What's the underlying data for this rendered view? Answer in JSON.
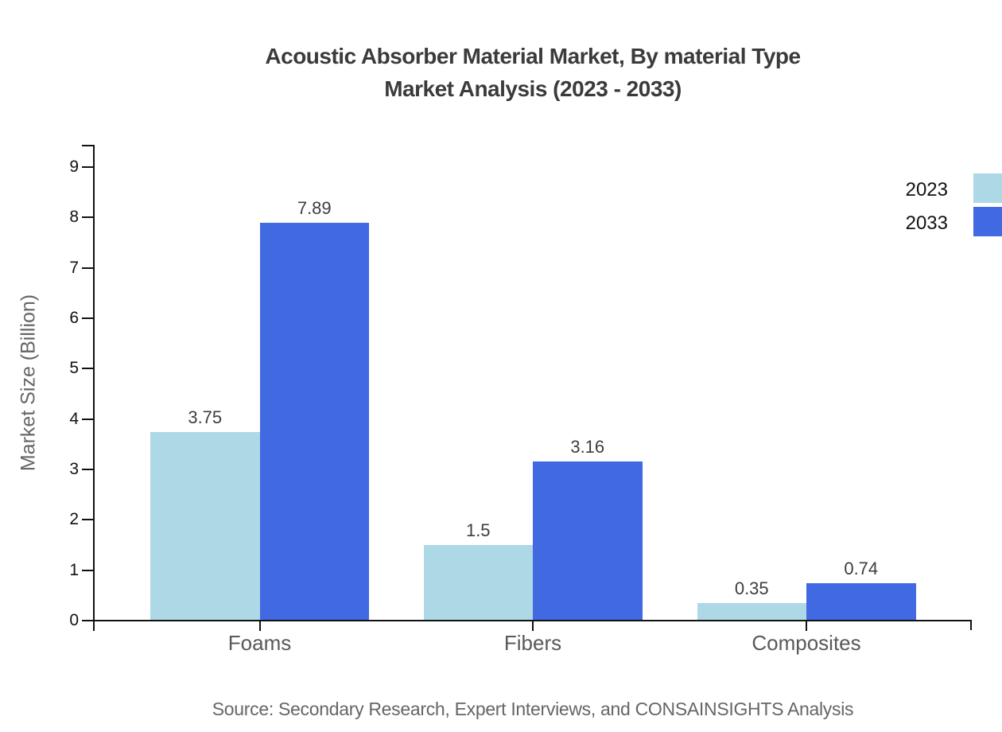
{
  "title": {
    "line1": "Acoustic Absorber Material Market, By material Type",
    "line2": "Market Analysis (2023 - 2033)"
  },
  "source": "Source: Secondary Research, Expert Interviews, and CONSAINSIGHTS Analysis",
  "chart_data": {
    "type": "bar",
    "title": "Acoustic Absorber Material Market, By material Type Market Analysis (2023 - 2033)",
    "categories": [
      "Foams",
      "Fibers",
      "Composites"
    ],
    "series": [
      {
        "name": "2023",
        "color": "#ADD8E6",
        "values": [
          3.75,
          1.5,
          0.35
        ],
        "value_labels": [
          "3.75",
          "1.5",
          "0.35"
        ]
      },
      {
        "name": "2033",
        "color": "#4169E1",
        "values": [
          7.89,
          3.16,
          0.74
        ],
        "value_labels": [
          "7.89",
          "3.16",
          "0.74"
        ]
      }
    ],
    "xlabel": "",
    "ylabel": "Market Size (Billion)",
    "ylim": [
      0,
      9
    ],
    "yticks": [
      0,
      1,
      2,
      3,
      4,
      5,
      6,
      7,
      8,
      9
    ],
    "grid": false,
    "legend_position": "right",
    "axis_color": "#111111",
    "text_color_muted": "#666666"
  }
}
